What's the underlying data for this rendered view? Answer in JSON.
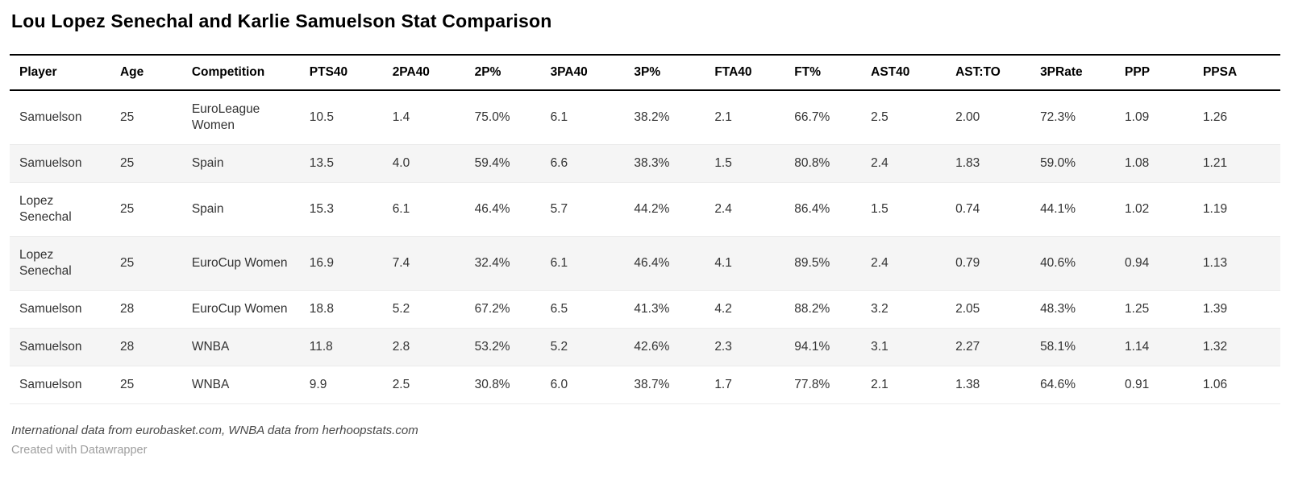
{
  "title": "Lou Lopez Senechal and Karlie Samuelson Stat Comparison",
  "chart_data": {
    "type": "table",
    "title": "Lou Lopez Senechal and Karlie Samuelson Stat Comparison",
    "columns": [
      "Player",
      "Age",
      "Competition",
      "PTS40",
      "2PA40",
      "2P%",
      "3PA40",
      "3P%",
      "FTA40",
      "FT%",
      "AST40",
      "AST:TO",
      "3PRate",
      "PPP",
      "PPSA"
    ],
    "rows": [
      [
        "Samuelson",
        "25",
        "EuroLeague Women",
        "10.5",
        "1.4",
        "75.0%",
        "6.1",
        "38.2%",
        "2.1",
        "66.7%",
        "2.5",
        "2.00",
        "72.3%",
        "1.09",
        "1.26"
      ],
      [
        "Samuelson",
        "25",
        "Spain",
        "13.5",
        "4.0",
        "59.4%",
        "6.6",
        "38.3%",
        "1.5",
        "80.8%",
        "2.4",
        "1.83",
        "59.0%",
        "1.08",
        "1.21"
      ],
      [
        "Lopez Senechal",
        "25",
        "Spain",
        "15.3",
        "6.1",
        "46.4%",
        "5.7",
        "44.2%",
        "2.4",
        "86.4%",
        "1.5",
        "0.74",
        "44.1%",
        "1.02",
        "1.19"
      ],
      [
        "Lopez Senechal",
        "25",
        "EuroCup Women",
        "16.9",
        "7.4",
        "32.4%",
        "6.1",
        "46.4%",
        "4.1",
        "89.5%",
        "2.4",
        "0.79",
        "40.6%",
        "0.94",
        "1.13"
      ],
      [
        "Samuelson",
        "28",
        "EuroCup Women",
        "18.8",
        "5.2",
        "67.2%",
        "6.5",
        "41.3%",
        "4.2",
        "88.2%",
        "3.2",
        "2.05",
        "48.3%",
        "1.25",
        "1.39"
      ],
      [
        "Samuelson",
        "28",
        "WNBA",
        "11.8",
        "2.8",
        "53.2%",
        "5.2",
        "42.6%",
        "2.3",
        "94.1%",
        "3.1",
        "2.27",
        "58.1%",
        "1.14",
        "1.32"
      ],
      [
        "Samuelson",
        "25",
        "WNBA",
        "9.9",
        "2.5",
        "30.8%",
        "6.0",
        "38.7%",
        "1.7",
        "77.8%",
        "2.1",
        "1.38",
        "64.6%",
        "0.91",
        "1.06"
      ]
    ]
  },
  "footer": {
    "source": "International data from eurobasket.com, WNBA data from herhoopstats.com",
    "credit": "Created with Datawrapper"
  },
  "colors": {
    "stripe": "#f5f5f5",
    "header_rule": "#000000",
    "row_border": "#ebebeb",
    "body_text": "#333333",
    "source_text": "#494949",
    "credit_text": "#9e9e9e"
  }
}
